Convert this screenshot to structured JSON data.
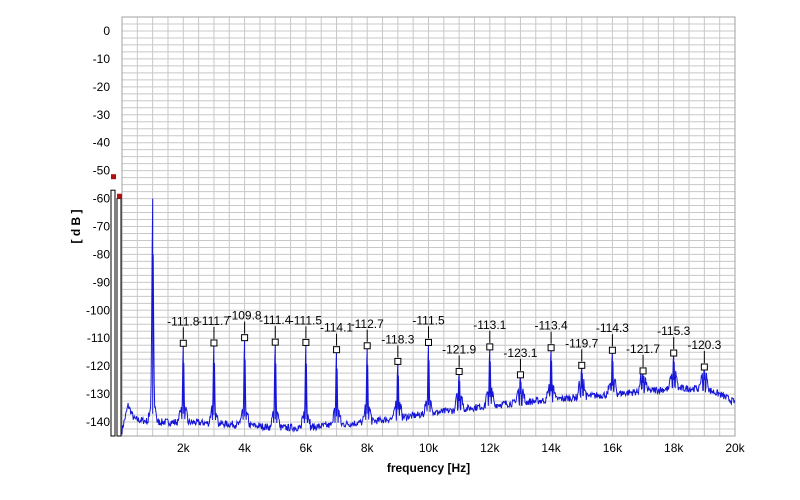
{
  "chart_data": {
    "type": "line",
    "xlabel": "frequency [Hz]",
    "ylabel": "[ d B ]",
    "xlim": [
      0,
      20000
    ],
    "ylim": [
      -145,
      5
    ],
    "grid": true,
    "x_ticks": [
      {
        "value": 2000,
        "label": "2k"
      },
      {
        "value": 4000,
        "label": "4k"
      },
      {
        "value": 6000,
        "label": "6k"
      },
      {
        "value": 8000,
        "label": "8k"
      },
      {
        "value": 10000,
        "label": "10k"
      },
      {
        "value": 12000,
        "label": "12k"
      },
      {
        "value": 14000,
        "label": "14k"
      },
      {
        "value": 16000,
        "label": "16k"
      },
      {
        "value": 18000,
        "label": "18k"
      },
      {
        "value": 20000,
        "label": "20k"
      }
    ],
    "y_ticks": [
      {
        "value": 0,
        "label": "0"
      },
      {
        "value": -10,
        "label": "-10"
      },
      {
        "value": -20,
        "label": "-20"
      },
      {
        "value": -30,
        "label": "-30"
      },
      {
        "value": -40,
        "label": "-40"
      },
      {
        "value": -50,
        "label": "-50"
      },
      {
        "value": -60,
        "label": "-60"
      },
      {
        "value": -70,
        "label": "-70"
      },
      {
        "value": -80,
        "label": "-80"
      },
      {
        "value": -90,
        "label": "-90"
      },
      {
        "value": -100,
        "label": "-100"
      },
      {
        "value": -110,
        "label": "-110"
      },
      {
        "value": -120,
        "label": "-120"
      },
      {
        "value": -130,
        "label": "-130"
      },
      {
        "value": -140,
        "label": "-140"
      }
    ],
    "fundamental": {
      "frequency": 1000,
      "level": -60
    },
    "harmonics": [
      {
        "frequency": 2000,
        "level": -111.8,
        "label": "-111.8"
      },
      {
        "frequency": 3000,
        "level": -111.7,
        "label": "-111.7"
      },
      {
        "frequency": 4000,
        "level": -109.8,
        "label": "-109.8"
      },
      {
        "frequency": 5000,
        "level": -111.4,
        "label": "-111.4"
      },
      {
        "frequency": 6000,
        "level": -111.5,
        "label": "-111.5"
      },
      {
        "frequency": 7000,
        "level": -114.1,
        "label": "-114.1"
      },
      {
        "frequency": 8000,
        "level": -112.7,
        "label": "-112.7"
      },
      {
        "frequency": 9000,
        "level": -118.3,
        "label": "-118.3"
      },
      {
        "frequency": 10000,
        "level": -111.5,
        "label": "-111.5"
      },
      {
        "frequency": 11000,
        "level": -121.9,
        "label": "-121.9"
      },
      {
        "frequency": 12000,
        "level": -113.1,
        "label": "-113.1"
      },
      {
        "frequency": 13000,
        "level": -123.1,
        "label": "-123.1"
      },
      {
        "frequency": 14000,
        "level": -113.4,
        "label": "-113.4"
      },
      {
        "frequency": 15000,
        "level": -119.7,
        "label": "-119.7"
      },
      {
        "frequency": 16000,
        "level": -114.3,
        "label": "-114.3"
      },
      {
        "frequency": 17000,
        "level": -121.7,
        "label": "-121.7"
      },
      {
        "frequency": 18000,
        "level": -115.3,
        "label": "-115.3"
      },
      {
        "frequency": 19000,
        "level": -120.3,
        "label": "-120.3"
      }
    ],
    "noise_floor": [
      {
        "x": 0,
        "y": -143
      },
      {
        "x": 200,
        "y": -134
      },
      {
        "x": 400,
        "y": -139
      },
      {
        "x": 1000,
        "y": -140
      },
      {
        "x": 2000,
        "y": -140
      },
      {
        "x": 4000,
        "y": -141
      },
      {
        "x": 5000,
        "y": -142
      },
      {
        "x": 6000,
        "y": -142
      },
      {
        "x": 8000,
        "y": -140
      },
      {
        "x": 10000,
        "y": -137
      },
      {
        "x": 12000,
        "y": -134
      },
      {
        "x": 14000,
        "y": -132
      },
      {
        "x": 16000,
        "y": -130
      },
      {
        "x": 18000,
        "y": -128
      },
      {
        "x": 19000,
        "y": -128
      },
      {
        "x": 19500,
        "y": -130
      },
      {
        "x": 20000,
        "y": -133
      }
    ],
    "level_meter": [
      {
        "level": -57,
        "peak": -52
      },
      {
        "level": -60,
        "peak": -59
      }
    ],
    "colors": {
      "line": "#1515d8",
      "grid": "#c8c8c8",
      "frame": "#a0a0a0",
      "peak_marker": "#b01010"
    }
  }
}
